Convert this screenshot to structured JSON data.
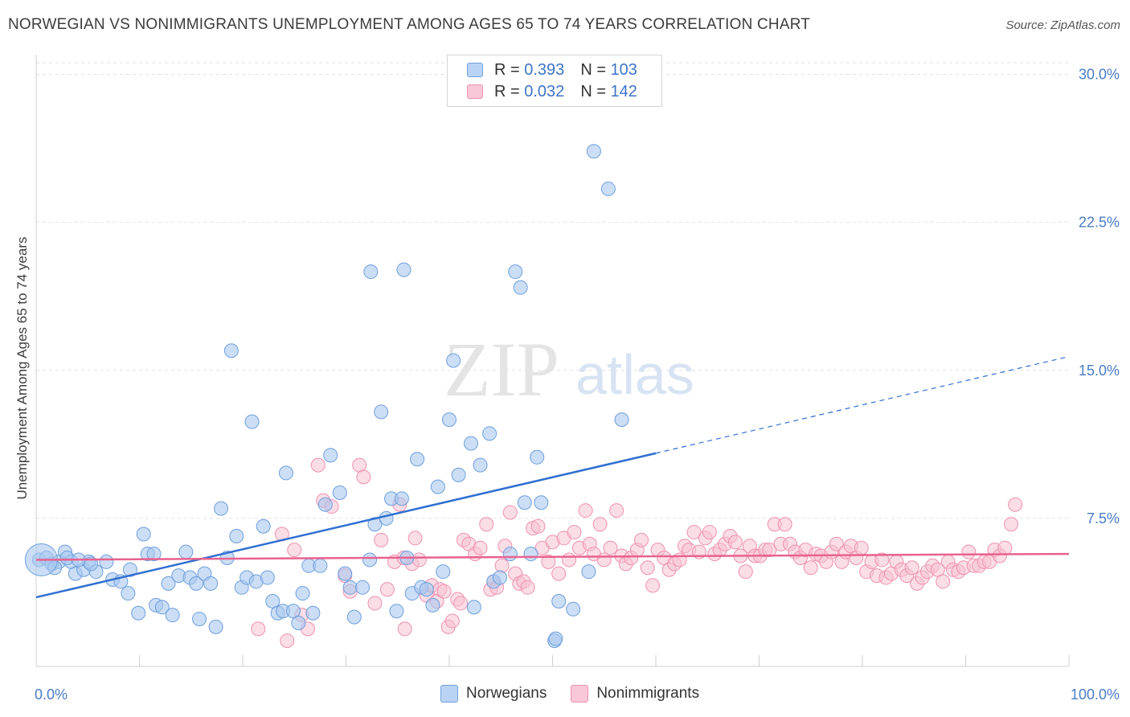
{
  "title": "NORWEGIAN VS NONIMMIGRANTS UNEMPLOYMENT AMONG AGES 65 TO 74 YEARS CORRELATION CHART",
  "source": "Source: ZipAtlas.com",
  "watermark": {
    "zip": "ZIP",
    "atlas": "atlas"
  },
  "legend": {
    "rows": [
      {
        "r_key": "R =",
        "r_value": "0.393",
        "n_key": "N =",
        "n_value": "103"
      },
      {
        "r_key": "R =",
        "r_value": "0.032",
        "n_key": "N =",
        "n_value": "142"
      }
    ]
  },
  "bottom_legend": {
    "norwegians": "Norwegians",
    "nonimmigrants": "Nonimmigrants"
  },
  "colors": {
    "blue_fill": "#a9c8f0",
    "blue_stroke": "#6f9fdc",
    "blue_line": "#2f6fd1",
    "pink_fill": "#f7c1d2",
    "pink_stroke": "#ee92b0",
    "pink_line": "#e8628f",
    "tick_text": "#4a7cc6",
    "grid": "#e2e2e2"
  },
  "chart_data": {
    "type": "scatter",
    "title": "NORWEGIAN VS NONIMMIGRANTS UNEMPLOYMENT AMONG AGES 65 TO 74 YEARS CORRELATION CHART",
    "xlabel": "",
    "ylabel": "Unemployment Among Ages 65 to 74 years",
    "xlim": [
      0,
      100
    ],
    "ylim": [
      0,
      31
    ],
    "x_tick_labels": [
      "0.0%",
      "100.0%"
    ],
    "y_ticks": [
      7.5,
      15.0,
      22.5,
      30.0
    ],
    "y_tick_labels": [
      "7.5%",
      "15.0%",
      "22.5%",
      "30.0%"
    ],
    "grid": "horizontal dashed",
    "legend_position": "top-center",
    "series": [
      {
        "name": "Norwegians",
        "R": 0.393,
        "N": 103,
        "trend": {
          "x0": 0,
          "y0": 3.5,
          "x1": 60,
          "y1": 10.8,
          "dashed_to_x": 100,
          "dashed_to_y": 15.7
        },
        "points": [
          [
            0.3,
            5.4
          ],
          [
            1.0,
            5.5
          ],
          [
            1.5,
            5.2
          ],
          [
            2.2,
            5.3
          ],
          [
            2.8,
            5.8
          ],
          [
            3.4,
            5.3
          ],
          [
            3.8,
            4.7
          ],
          [
            4.6,
            4.9
          ],
          [
            5.1,
            5.3
          ],
          [
            5.8,
            4.8
          ],
          [
            6.8,
            5.3
          ],
          [
            7.4,
            4.4
          ],
          [
            8.2,
            4.3
          ],
          [
            8.9,
            3.7
          ],
          [
            9.1,
            4.9
          ],
          [
            9.9,
            2.7
          ],
          [
            10.4,
            6.7
          ],
          [
            10.8,
            5.7
          ],
          [
            11.4,
            5.7
          ],
          [
            11.6,
            3.1
          ],
          [
            12.2,
            3.0
          ],
          [
            12.8,
            4.2
          ],
          [
            13.2,
            2.6
          ],
          [
            13.8,
            4.6
          ],
          [
            14.5,
            5.8
          ],
          [
            14.9,
            4.5
          ],
          [
            15.5,
            4.2
          ],
          [
            15.8,
            2.4
          ],
          [
            16.3,
            4.7
          ],
          [
            16.9,
            4.2
          ],
          [
            17.4,
            2.0
          ],
          [
            17.9,
            8.0
          ],
          [
            18.5,
            5.5
          ],
          [
            18.9,
            16.0
          ],
          [
            19.4,
            6.6
          ],
          [
            19.9,
            4.0
          ],
          [
            20.4,
            4.5
          ],
          [
            20.9,
            12.4
          ],
          [
            21.3,
            4.3
          ],
          [
            22.0,
            7.1
          ],
          [
            22.4,
            4.5
          ],
          [
            22.9,
            3.3
          ],
          [
            23.4,
            2.7
          ],
          [
            23.9,
            2.8
          ],
          [
            24.2,
            9.8
          ],
          [
            24.9,
            2.8
          ],
          [
            25.4,
            2.2
          ],
          [
            25.8,
            3.7
          ],
          [
            26.4,
            5.1
          ],
          [
            26.8,
            2.7
          ],
          [
            27.5,
            5.1
          ],
          [
            28.0,
            8.2
          ],
          [
            28.5,
            10.7
          ],
          [
            29.4,
            8.8
          ],
          [
            29.9,
            4.7
          ],
          [
            30.4,
            4.0
          ],
          [
            30.8,
            2.5
          ],
          [
            31.6,
            4.0
          ],
          [
            32.3,
            5.4
          ],
          [
            32.8,
            7.2
          ],
          [
            32.4,
            20.0
          ],
          [
            33.4,
            12.9
          ],
          [
            33.9,
            7.5
          ],
          [
            34.4,
            8.5
          ],
          [
            34.9,
            2.8
          ],
          [
            35.4,
            8.5
          ],
          [
            35.6,
            20.1
          ],
          [
            35.9,
            5.5
          ],
          [
            36.4,
            3.7
          ],
          [
            36.9,
            10.5
          ],
          [
            37.3,
            4.0
          ],
          [
            37.8,
            3.9
          ],
          [
            38.4,
            3.1
          ],
          [
            38.9,
            9.1
          ],
          [
            39.4,
            4.8
          ],
          [
            40.0,
            12.5
          ],
          [
            40.4,
            15.5
          ],
          [
            40.9,
            9.7
          ],
          [
            42.1,
            11.3
          ],
          [
            42.4,
            3.0
          ],
          [
            43.0,
            10.2
          ],
          [
            43.9,
            11.8
          ],
          [
            44.3,
            4.3
          ],
          [
            44.9,
            4.5
          ],
          [
            45.9,
            5.7
          ],
          [
            46.4,
            20.0
          ],
          [
            46.9,
            19.2
          ],
          [
            47.3,
            8.3
          ],
          [
            47.9,
            5.7
          ],
          [
            48.5,
            10.6
          ],
          [
            48.9,
            8.3
          ],
          [
            50.2,
            1.3
          ],
          [
            50.3,
            1.4
          ],
          [
            50.6,
            3.3
          ],
          [
            52.0,
            2.9
          ],
          [
            53.5,
            4.8
          ],
          [
            54.0,
            26.1
          ],
          [
            55.4,
            24.2
          ],
          [
            56.7,
            12.5
          ],
          [
            5.3,
            5.2
          ],
          [
            3.0,
            5.5
          ],
          [
            1.8,
            5.0
          ],
          [
            4.1,
            5.4
          ]
        ],
        "big_point": [
          0.5,
          5.4
        ]
      },
      {
        "name": "Nonimmigrants",
        "R": 0.032,
        "N": 142,
        "trend": {
          "x0": 0,
          "y0": 5.4,
          "x1": 100,
          "y1": 5.7
        },
        "points": [
          [
            21.5,
            1.9
          ],
          [
            23.8,
            6.7
          ],
          [
            24.3,
            1.3
          ],
          [
            25.0,
            5.9
          ],
          [
            25.7,
            2.6
          ],
          [
            26.3,
            1.9
          ],
          [
            27.3,
            10.2
          ],
          [
            27.8,
            8.4
          ],
          [
            28.6,
            8.1
          ],
          [
            29.9,
            4.6
          ],
          [
            30.4,
            3.8
          ],
          [
            31.3,
            10.2
          ],
          [
            31.7,
            9.6
          ],
          [
            32.8,
            3.2
          ],
          [
            33.4,
            6.4
          ],
          [
            34.0,
            3.9
          ],
          [
            34.7,
            5.3
          ],
          [
            35.2,
            8.2
          ],
          [
            35.7,
            1.9
          ],
          [
            36.4,
            5.2
          ],
          [
            36.7,
            6.5
          ],
          [
            37.1,
            5.4
          ],
          [
            37.8,
            3.6
          ],
          [
            38.3,
            4.1
          ],
          [
            38.8,
            3.3
          ],
          [
            39.1,
            3.9
          ],
          [
            39.5,
            3.8
          ],
          [
            39.9,
            2.0
          ],
          [
            40.3,
            2.3
          ],
          [
            40.8,
            3.4
          ],
          [
            41.1,
            3.2
          ],
          [
            41.4,
            6.4
          ],
          [
            41.9,
            6.2
          ],
          [
            42.5,
            5.7
          ],
          [
            43.0,
            6.0
          ],
          [
            43.6,
            7.2
          ],
          [
            44.0,
            3.9
          ],
          [
            44.3,
            4.3
          ],
          [
            44.6,
            4.0
          ],
          [
            45.1,
            5.1
          ],
          [
            45.4,
            6.1
          ],
          [
            45.9,
            7.8
          ],
          [
            46.4,
            4.7
          ],
          [
            46.8,
            4.2
          ],
          [
            47.2,
            4.3
          ],
          [
            47.6,
            4.0
          ],
          [
            48.1,
            7.0
          ],
          [
            48.6,
            7.1
          ],
          [
            49.0,
            6.0
          ],
          [
            49.6,
            5.3
          ],
          [
            50.0,
            6.3
          ],
          [
            50.6,
            4.7
          ],
          [
            51.1,
            6.5
          ],
          [
            51.6,
            5.4
          ],
          [
            52.1,
            6.8
          ],
          [
            52.6,
            6.0
          ],
          [
            53.2,
            7.9
          ],
          [
            53.6,
            6.2
          ],
          [
            54.0,
            5.7
          ],
          [
            54.6,
            7.2
          ],
          [
            55.0,
            5.4
          ],
          [
            55.6,
            6.0
          ],
          [
            56.2,
            7.9
          ],
          [
            56.7,
            5.6
          ],
          [
            57.1,
            5.2
          ],
          [
            57.6,
            5.5
          ],
          [
            58.2,
            5.9
          ],
          [
            58.6,
            6.4
          ],
          [
            59.2,
            5.0
          ],
          [
            59.7,
            4.1
          ],
          [
            60.2,
            5.9
          ],
          [
            60.8,
            5.5
          ],
          [
            61.3,
            4.9
          ],
          [
            61.8,
            5.2
          ],
          [
            62.3,
            5.4
          ],
          [
            62.8,
            6.1
          ],
          [
            63.2,
            5.9
          ],
          [
            63.7,
            6.8
          ],
          [
            64.2,
            5.8
          ],
          [
            64.8,
            6.5
          ],
          [
            65.2,
            6.8
          ],
          [
            65.7,
            5.7
          ],
          [
            66.2,
            5.9
          ],
          [
            66.7,
            6.2
          ],
          [
            67.2,
            6.6
          ],
          [
            67.7,
            6.3
          ],
          [
            68.2,
            5.6
          ],
          [
            68.7,
            4.8
          ],
          [
            69.1,
            6.1
          ],
          [
            69.6,
            5.6
          ],
          [
            70.1,
            5.6
          ],
          [
            70.6,
            5.9
          ],
          [
            71.0,
            5.9
          ],
          [
            71.5,
            7.2
          ],
          [
            72.1,
            6.2
          ],
          [
            72.5,
            7.2
          ],
          [
            73.0,
            6.2
          ],
          [
            73.5,
            5.8
          ],
          [
            74.0,
            5.5
          ],
          [
            74.5,
            5.9
          ],
          [
            75.0,
            5.0
          ],
          [
            75.5,
            5.7
          ],
          [
            76.0,
            5.6
          ],
          [
            76.5,
            5.3
          ],
          [
            77.0,
            5.8
          ],
          [
            77.5,
            6.2
          ],
          [
            78.0,
            5.3
          ],
          [
            78.4,
            5.8
          ],
          [
            78.9,
            6.1
          ],
          [
            79.4,
            5.5
          ],
          [
            79.9,
            6.0
          ],
          [
            80.4,
            4.8
          ],
          [
            80.9,
            5.3
          ],
          [
            81.4,
            4.6
          ],
          [
            81.9,
            5.4
          ],
          [
            82.3,
            4.5
          ],
          [
            82.8,
            4.7
          ],
          [
            83.3,
            5.3
          ],
          [
            83.8,
            4.9
          ],
          [
            84.3,
            4.6
          ],
          [
            84.8,
            5.0
          ],
          [
            85.3,
            4.2
          ],
          [
            85.8,
            4.5
          ],
          [
            86.3,
            4.8
          ],
          [
            86.8,
            5.1
          ],
          [
            87.3,
            4.9
          ],
          [
            87.8,
            4.3
          ],
          [
            88.3,
            5.3
          ],
          [
            88.8,
            4.9
          ],
          [
            89.3,
            4.8
          ],
          [
            89.8,
            5.0
          ],
          [
            90.3,
            5.8
          ],
          [
            90.8,
            5.1
          ],
          [
            91.3,
            5.1
          ],
          [
            91.8,
            5.3
          ],
          [
            92.3,
            5.3
          ],
          [
            92.8,
            5.9
          ],
          [
            93.3,
            5.6
          ],
          [
            93.8,
            6.0
          ],
          [
            94.4,
            7.2
          ],
          [
            94.8,
            8.2
          ],
          [
            35.6,
            5.5
          ]
        ]
      }
    ]
  }
}
